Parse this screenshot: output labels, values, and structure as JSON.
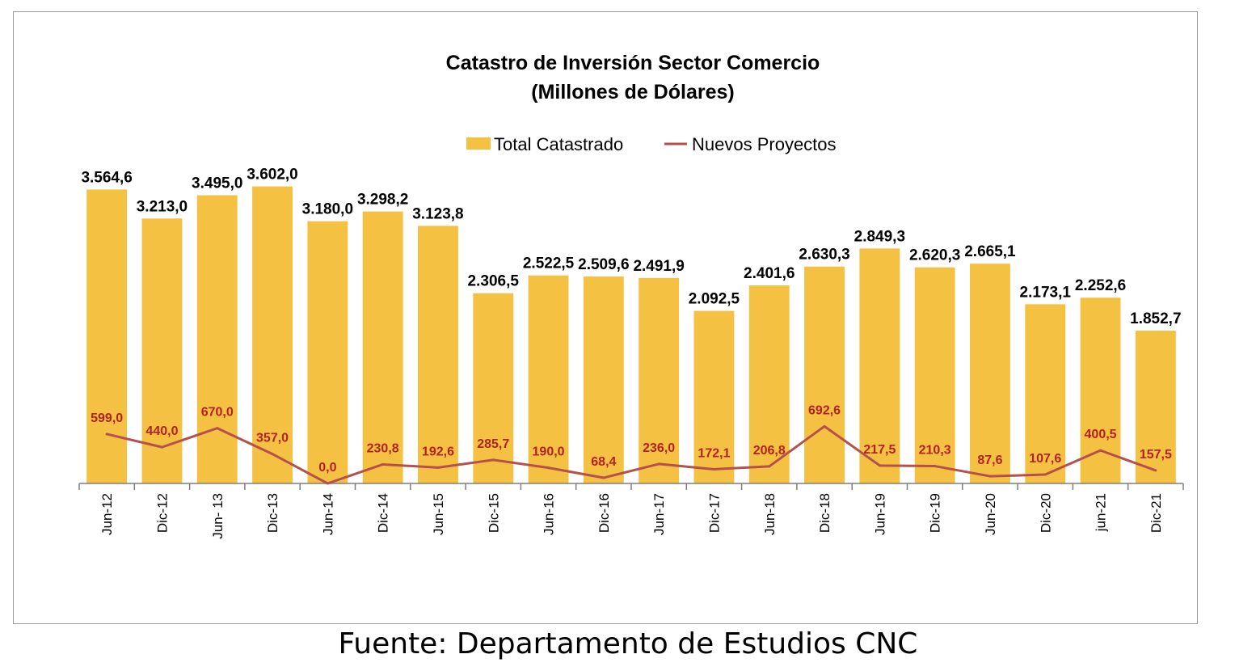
{
  "chart_data": {
    "type": "bar",
    "title": "Catastro de Inversión Sector Comercio",
    "subtitle": "(Millones de Dólares)",
    "categories": [
      "Jun-12",
      "Dic-12",
      "Jun- 13",
      "Dic-13",
      "Jun-14",
      "Dic-14",
      "Jun-15",
      "Dic-15",
      "Jun-16",
      "Dic-16",
      "Jun-17",
      "Dic-17",
      "Jun-18",
      "Dic-18",
      "Jun-19",
      "Dic-19",
      "Jun-20",
      "Dic-20",
      "jun-21",
      "Dic-21"
    ],
    "series": [
      {
        "name": "Total Catastrado",
        "type": "bar",
        "color": "#F4C142",
        "values": [
          3564.6,
          3213.0,
          3495.0,
          3602.0,
          3180.0,
          3298.2,
          3123.8,
          2306.5,
          2522.5,
          2509.6,
          2491.9,
          2092.5,
          2401.6,
          2630.3,
          2849.3,
          2620.3,
          2665.1,
          2173.1,
          2252.6,
          1852.7
        ],
        "labels": [
          "3.564,6",
          "3.213,0",
          "3.495,0",
          "3.602,0",
          "3.180,0",
          "3.298,2",
          "3.123,8",
          "2.306,5",
          "2.522,5",
          "2.509,6",
          "2.491,9",
          "2.092,5",
          "2.401,6",
          "2.630,3",
          "2.849,3",
          "2.620,3",
          "2.665,1",
          "2.173,1",
          "2.252,6",
          "1.852,7"
        ]
      },
      {
        "name": "Nuevos Proyectos",
        "type": "line",
        "color": "#B5514D",
        "label_color": "#B22222",
        "values": [
          599.0,
          440.0,
          670.0,
          357.0,
          0.0,
          230.8,
          192.6,
          285.7,
          190.0,
          68.4,
          236.0,
          172.1,
          206.8,
          692.6,
          217.5,
          210.3,
          87.6,
          107.6,
          400.5,
          157.5
        ],
        "labels": [
          "599,0",
          "440,0",
          "670,0",
          "357,0",
          "0,0",
          "230,8",
          "192,6",
          "285,7",
          "190,0",
          "68,4",
          "236,0",
          "172,1",
          "206,8",
          "692,6",
          "217,5",
          "210,3",
          "87,6",
          "107,6",
          "400,5",
          "157,5"
        ]
      }
    ],
    "ylim": [
      0,
      4000
    ],
    "grid": false,
    "legend_position": "top-center"
  },
  "source": "Fuente: Departamento de Estudios CNC"
}
